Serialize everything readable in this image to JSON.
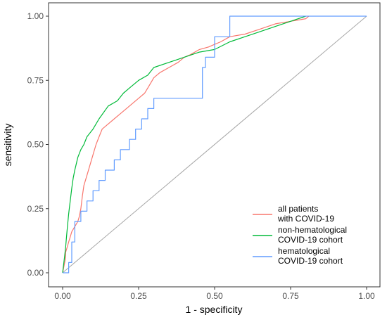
{
  "chart_data": {
    "type": "line",
    "xlabel": "1 - specificity",
    "ylabel": "sensitivity",
    "xlim": [
      0,
      1
    ],
    "ylim": [
      0,
      1
    ],
    "x_ticks": [
      "0.00",
      "0.25",
      "0.50",
      "0.75",
      "1.00"
    ],
    "y_ticks": [
      "0.00",
      "0.25",
      "0.50",
      "0.75",
      "1.00"
    ],
    "grid": false,
    "legend_position": "bottom-right",
    "reference_line": {
      "x": [
        0,
        1
      ],
      "y": [
        0,
        1
      ],
      "color": "#a6a6a6"
    },
    "series": [
      {
        "name_lines": [
          "all patients",
          " with COVID-19"
        ],
        "color": "#F8766D",
        "x": [
          0,
          0.005,
          0.01,
          0.01,
          0.015,
          0.02,
          0.025,
          0.03,
          0.04,
          0.05,
          0.055,
          0.06,
          0.065,
          0.07,
          0.08,
          0.09,
          0.1,
          0.11,
          0.12,
          0.13,
          0.15,
          0.17,
          0.19,
          0.21,
          0.23,
          0.25,
          0.27,
          0.28,
          0.29,
          0.3,
          0.32,
          0.35,
          0.38,
          0.4,
          0.42,
          0.45,
          0.48,
          0.5,
          0.52,
          0.55,
          0.6,
          0.65,
          0.7,
          0.75,
          0.8,
          0.81
        ],
        "y": [
          0,
          0.03,
          0.06,
          0.08,
          0.1,
          0.12,
          0.14,
          0.16,
          0.18,
          0.2,
          0.22,
          0.25,
          0.3,
          0.34,
          0.38,
          0.42,
          0.46,
          0.5,
          0.53,
          0.56,
          0.58,
          0.6,
          0.62,
          0.64,
          0.66,
          0.68,
          0.7,
          0.72,
          0.74,
          0.76,
          0.78,
          0.8,
          0.82,
          0.84,
          0.85,
          0.87,
          0.88,
          0.89,
          0.9,
          0.92,
          0.93,
          0.95,
          0.97,
          0.98,
          0.99,
          1.0
        ]
      },
      {
        "name_lines": [
          "non-hematological",
          " COVID-19 cohort"
        ],
        "color": "#00BA38",
        "x": [
          0,
          0.005,
          0.01,
          0.012,
          0.015,
          0.02,
          0.025,
          0.03,
          0.035,
          0.04,
          0.05,
          0.06,
          0.07,
          0.08,
          0.1,
          0.12,
          0.15,
          0.18,
          0.2,
          0.22,
          0.25,
          0.28,
          0.3,
          0.35,
          0.4,
          0.45,
          0.5,
          0.55,
          0.6,
          0.65,
          0.7,
          0.75,
          0.8
        ],
        "y": [
          0,
          0.05,
          0.1,
          0.13,
          0.17,
          0.23,
          0.28,
          0.33,
          0.37,
          0.4,
          0.45,
          0.48,
          0.5,
          0.53,
          0.56,
          0.6,
          0.65,
          0.67,
          0.7,
          0.72,
          0.75,
          0.77,
          0.8,
          0.82,
          0.84,
          0.86,
          0.87,
          0.9,
          0.92,
          0.94,
          0.96,
          0.98,
          1.0
        ]
      },
      {
        "name_lines": [
          "hematological",
          " COVID-19 cohort"
        ],
        "color": "#619CFF",
        "x": [
          0,
          0.02,
          0.02,
          0.03,
          0.03,
          0.04,
          0.04,
          0.06,
          0.06,
          0.08,
          0.08,
          0.1,
          0.1,
          0.12,
          0.12,
          0.14,
          0.14,
          0.17,
          0.17,
          0.19,
          0.19,
          0.22,
          0.22,
          0.24,
          0.24,
          0.26,
          0.26,
          0.28,
          0.28,
          0.3,
          0.3,
          0.46,
          0.46,
          0.47,
          0.47,
          0.5,
          0.5,
          0.55,
          0.55,
          1.0
        ],
        "y": [
          0,
          0,
          0.04,
          0.04,
          0.12,
          0.12,
          0.2,
          0.2,
          0.24,
          0.24,
          0.28,
          0.28,
          0.32,
          0.32,
          0.36,
          0.36,
          0.4,
          0.4,
          0.44,
          0.44,
          0.48,
          0.48,
          0.52,
          0.52,
          0.56,
          0.56,
          0.6,
          0.6,
          0.64,
          0.64,
          0.68,
          0.68,
          0.8,
          0.8,
          0.84,
          0.84,
          0.92,
          0.92,
          1.0,
          1.0
        ]
      }
    ]
  }
}
